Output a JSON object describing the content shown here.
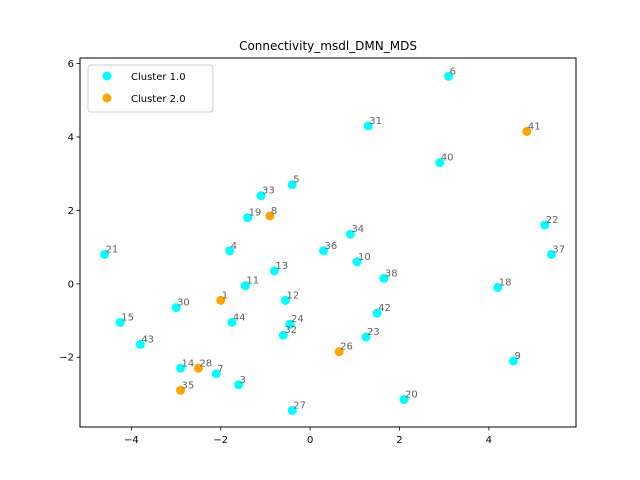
{
  "chart_data": {
    "type": "scatter",
    "title": "Connectivity_msdl_DMN_MDS",
    "xlabel": "",
    "ylabel": "",
    "xlim": [
      -5.15,
      5.95
    ],
    "ylim": [
      -3.9,
      6.15
    ],
    "xticks": [
      -4,
      -2,
      0,
      2,
      4
    ],
    "yticks": [
      -2,
      0,
      2,
      4,
      6
    ],
    "grid": false,
    "legend_position": "top-left",
    "series": [
      {
        "name": "Cluster 1.0",
        "color": "#00ffff",
        "points": [
          {
            "label": "6",
            "x": 3.1,
            "y": 5.65
          },
          {
            "label": "31",
            "x": 1.3,
            "y": 4.3
          },
          {
            "label": "40",
            "x": 2.9,
            "y": 3.3
          },
          {
            "label": "33",
            "x": -1.1,
            "y": 2.4
          },
          {
            "label": "5",
            "x": -0.4,
            "y": 2.7
          },
          {
            "label": "19",
            "x": -1.4,
            "y": 1.8
          },
          {
            "label": "22",
            "x": 5.25,
            "y": 1.6
          },
          {
            "label": "21",
            "x": -4.6,
            "y": 0.8
          },
          {
            "label": "4",
            "x": -1.8,
            "y": 0.9
          },
          {
            "label": "34",
            "x": 0.9,
            "y": 1.35
          },
          {
            "label": "36",
            "x": 0.3,
            "y": 0.9
          },
          {
            "label": "37",
            "x": 5.4,
            "y": 0.8
          },
          {
            "label": "10",
            "x": 1.05,
            "y": 0.6
          },
          {
            "label": "13",
            "x": -0.8,
            "y": 0.35
          },
          {
            "label": "38",
            "x": 1.65,
            "y": 0.15
          },
          {
            "label": "11",
            "x": -1.45,
            "y": -0.05
          },
          {
            "label": "18",
            "x": 4.2,
            "y": -0.1
          },
          {
            "label": "12",
            "x": -0.55,
            "y": -0.45
          },
          {
            "label": "30",
            "x": -3.0,
            "y": -0.65
          },
          {
            "label": "15",
            "x": -4.25,
            "y": -1.05
          },
          {
            "label": "44",
            "x": -1.75,
            "y": -1.05
          },
          {
            "label": "24",
            "x": -0.45,
            "y": -1.1
          },
          {
            "label": "42",
            "x": 1.5,
            "y": -0.8
          },
          {
            "label": "32",
            "x": -0.6,
            "y": -1.4
          },
          {
            "label": "23",
            "x": 1.25,
            "y": -1.45
          },
          {
            "label": "43",
            "x": -3.8,
            "y": -1.65
          },
          {
            "label": "9",
            "x": 4.55,
            "y": -2.1
          },
          {
            "label": "14",
            "x": -2.9,
            "y": -2.3
          },
          {
            "label": "7",
            "x": -2.1,
            "y": -2.45
          },
          {
            "label": "3",
            "x": -1.6,
            "y": -2.75
          },
          {
            "label": "20",
            "x": 2.1,
            "y": -3.15
          },
          {
            "label": "27",
            "x": -0.4,
            "y": -3.45
          }
        ]
      },
      {
        "name": "Cluster 2.0",
        "color": "#ffa500",
        "points": [
          {
            "label": "41",
            "x": 4.85,
            "y": 4.15
          },
          {
            "label": "8",
            "x": -0.9,
            "y": 1.85
          },
          {
            "label": "1",
            "x": -2.0,
            "y": -0.45
          },
          {
            "label": "26",
            "x": 0.65,
            "y": -1.85
          },
          {
            "label": "28",
            "x": -2.5,
            "y": -2.3
          },
          {
            "label": "35",
            "x": -2.9,
            "y": -2.9
          }
        ]
      }
    ]
  }
}
